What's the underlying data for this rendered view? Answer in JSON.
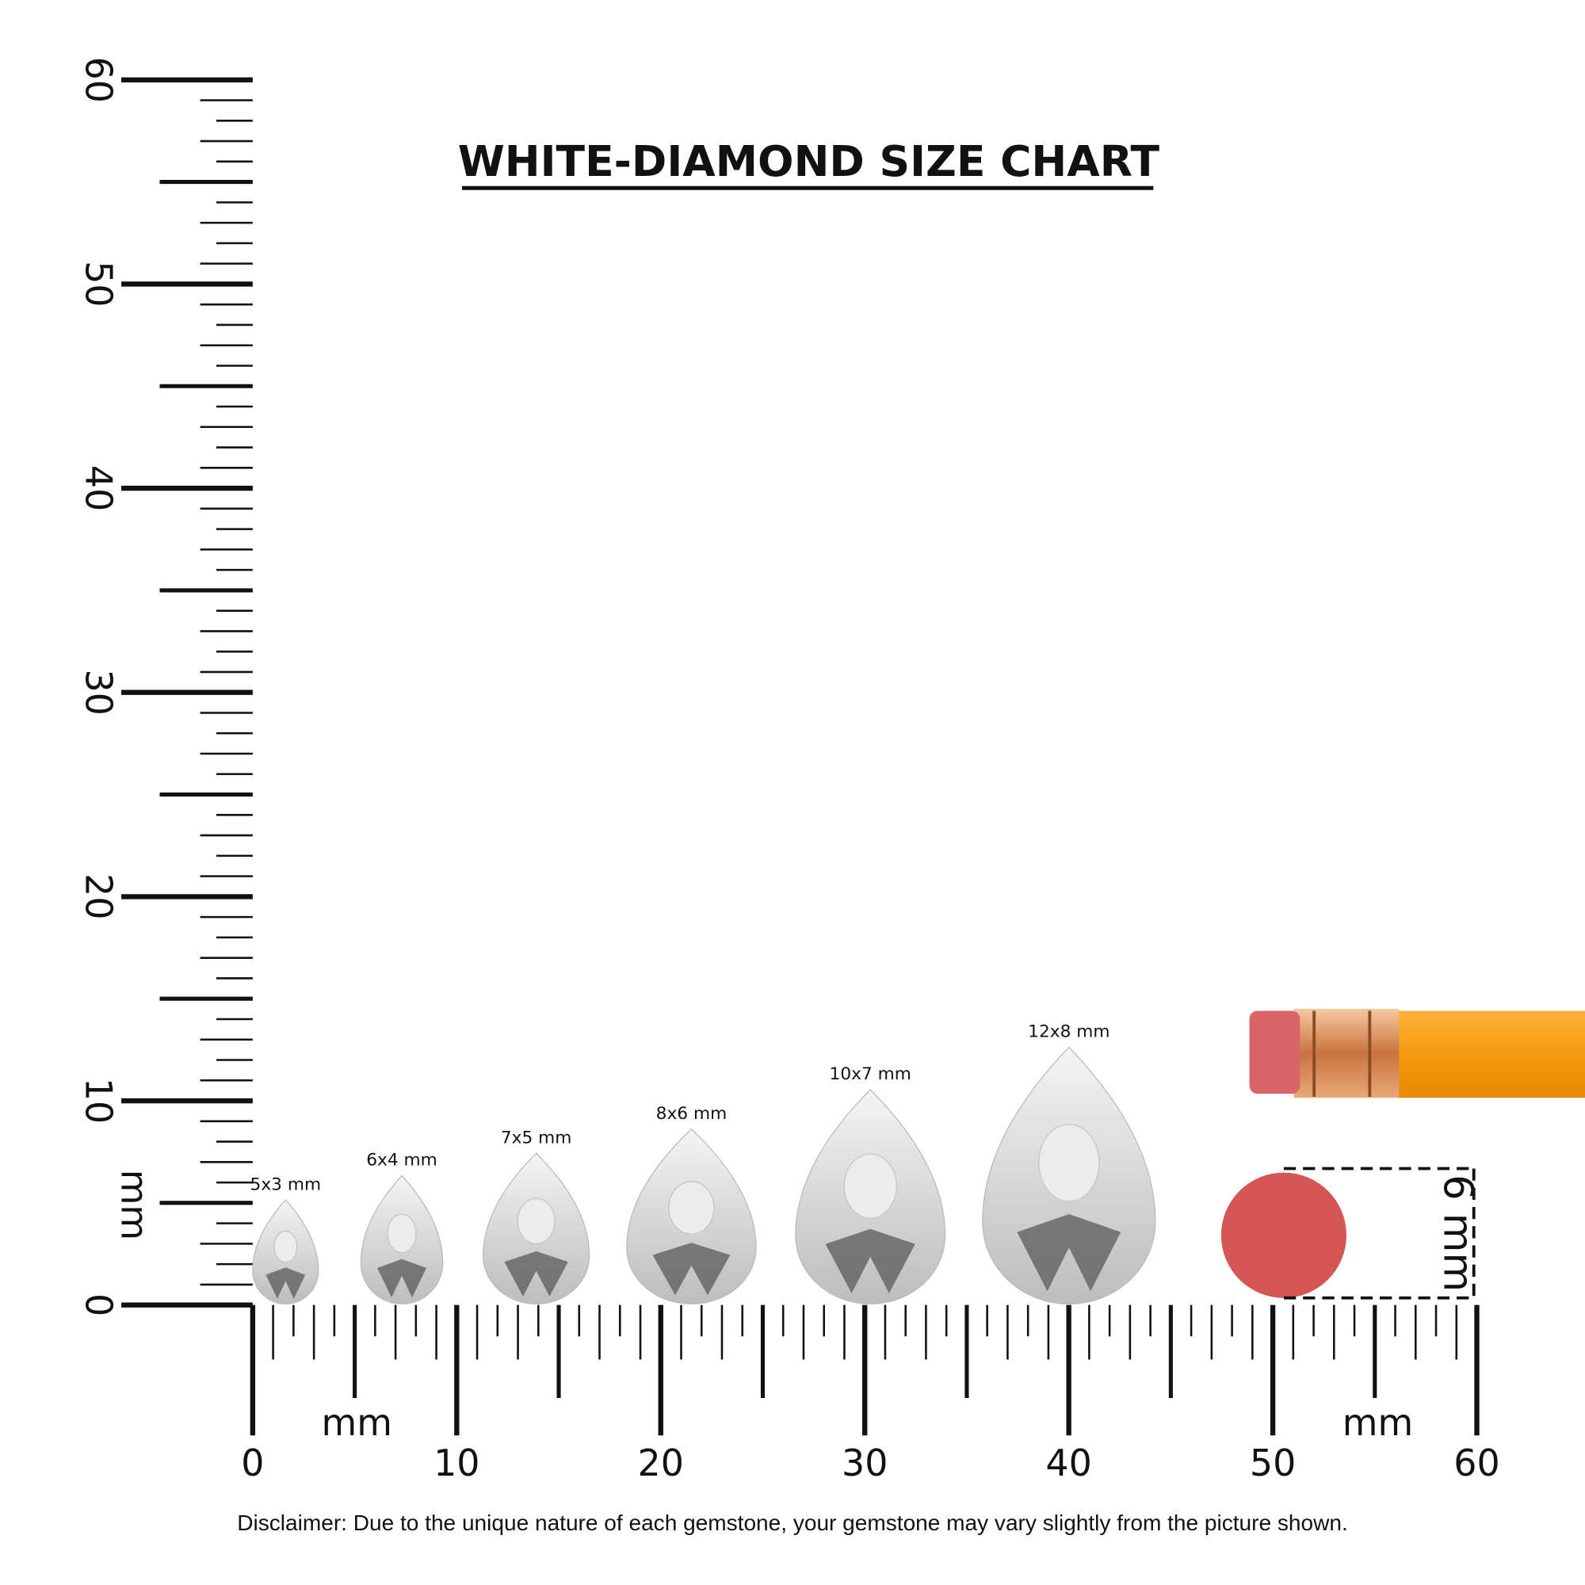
{
  "title": "WHITE-DIAMOND SIZE CHART",
  "vertical_ruler": {
    "labels": [
      0,
      10,
      20,
      30,
      40,
      50,
      60
    ],
    "unit": "mm"
  },
  "horizontal_ruler": {
    "labels": [
      0,
      10,
      20,
      30,
      40,
      50,
      60
    ],
    "units": [
      "mm",
      "mm"
    ]
  },
  "gems": [
    {
      "label": "5x3 mm"
    },
    {
      "label": "6x4 mm"
    },
    {
      "label": "7x5 mm"
    },
    {
      "label": "8x6 mm"
    },
    {
      "label": "10x7 mm"
    },
    {
      "label": "12x8 mm"
    }
  ],
  "eraser_label": "6 mm",
  "disclaimer": "Disclaimer: Due to the unique nature of each gemstone, your gemstone may vary slightly from the picture shown."
}
